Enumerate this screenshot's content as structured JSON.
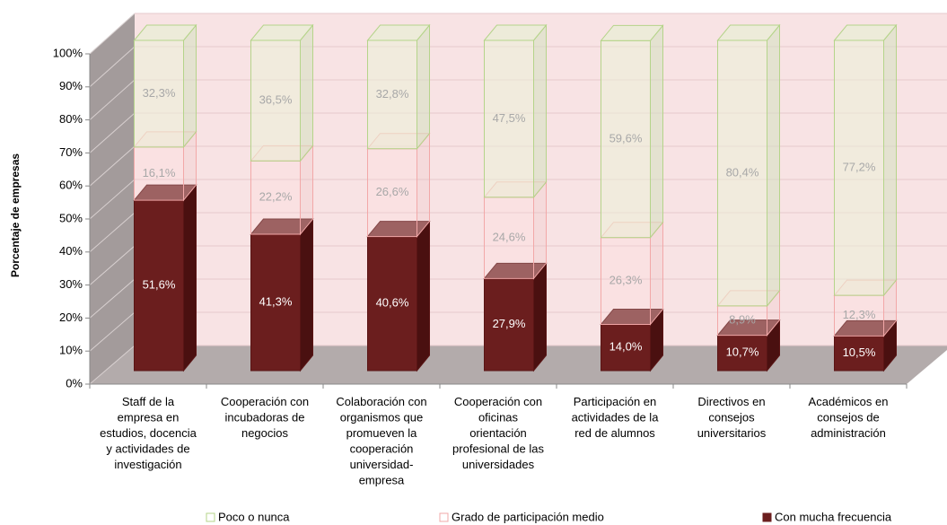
{
  "chart_data": {
    "type": "bar3d_stacked",
    "y_label": "Porcentaje de empresas",
    "categories": [
      "Staff de la empresa en estudios, docencia y actividades de investigación",
      "Cooperación con incubadoras de negocios",
      "Colaboración con organismos que promueven la cooperación universidad-empresa",
      "Cooperación con oficinas orientación profesional de las universidades",
      "Participación en actividades de la red de alumnos",
      "Directivos en consejos universitarios",
      "Académicos en consejos de administración"
    ],
    "series": [
      {
        "name": "Con mucha frecuencia",
        "color": "#6b1e1e",
        "values": [
          51.6,
          41.3,
          40.6,
          27.9,
          14.0,
          10.7,
          10.5
        ],
        "value_labels": [
          "51,6%",
          "41,3%",
          "40,6%",
          "27,9%",
          "14,0%",
          "10,7%",
          "10,5%"
        ]
      },
      {
        "name": "Grado de participación medio",
        "color": "#f2a8a8",
        "values": [
          16.1,
          22.2,
          26.6,
          24.6,
          26.3,
          8.9,
          12.3
        ],
        "value_labels": [
          "16,1%",
          "22,2%",
          "26,6%",
          "24,6%",
          "26,3%",
          "8,9%",
          "12,3%"
        ]
      },
      {
        "name": "Poco o nunca",
        "color": "#b5d48a",
        "values": [
          32.3,
          36.5,
          32.8,
          47.5,
          59.6,
          80.4,
          77.2
        ],
        "value_labels": [
          "32,3%",
          "36,5%",
          "32,8%",
          "47,5%",
          "59,6%",
          "80,4%",
          "77,2%"
        ]
      }
    ],
    "ylim": [
      0,
      100
    ],
    "yticks": [
      {
        "value": 0,
        "label": "0%"
      },
      {
        "value": 10,
        "label": "10%"
      },
      {
        "value": 20,
        "label": "20%"
      },
      {
        "value": 30,
        "label": "30%"
      },
      {
        "value": 40,
        "label": "40%"
      },
      {
        "value": 50,
        "label": "50%"
      },
      {
        "value": 60,
        "label": "60%"
      },
      {
        "value": 70,
        "label": "70%"
      },
      {
        "value": 80,
        "label": "80%"
      },
      {
        "value": 90,
        "label": "90%"
      },
      {
        "value": 100,
        "label": "100%"
      }
    ],
    "grid": true
  }
}
